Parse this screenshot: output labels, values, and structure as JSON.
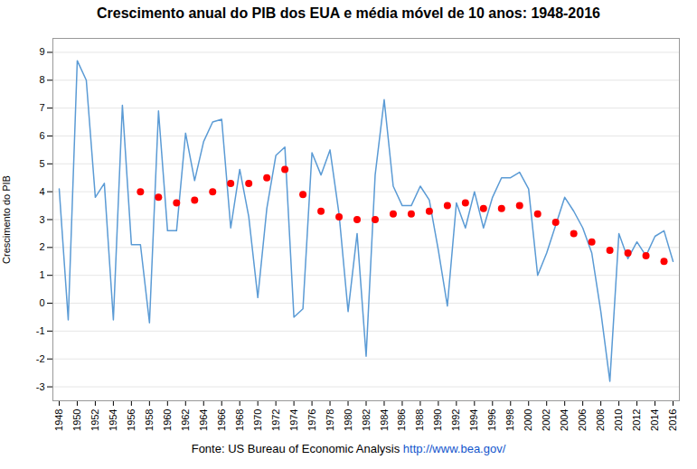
{
  "chart_data": {
    "type": "line",
    "title": "Crescimento anual do PIB dos EUA e média móvel de 10 anos: 1948-2016",
    "ylabel": "Crescimento do PIB",
    "annotations": [
      "Fonte: US Bureau of Economic Analysis",
      "http://www.bea.gov/"
    ],
    "series": [
      {
        "type": "line",
        "color": "#5b9bd5",
        "line_style": "solid",
        "x": [
          1948,
          1949,
          1950,
          1951,
          1952,
          1953,
          1954,
          1955,
          1956,
          1957,
          1958,
          1959,
          1960,
          1961,
          1962,
          1963,
          1964,
          1965,
          1966,
          1967,
          1968,
          1969,
          1970,
          1971,
          1972,
          1973,
          1974,
          1975,
          1976,
          1977,
          1978,
          1979,
          1980,
          1981,
          1982,
          1983,
          1984,
          1985,
          1986,
          1987,
          1988,
          1989,
          1990,
          1991,
          1992,
          1993,
          1994,
          1995,
          1996,
          1997,
          1998,
          1999,
          2000,
          2001,
          2002,
          2003,
          2004,
          2005,
          2006,
          2007,
          2008,
          2009,
          2010,
          2011,
          2012,
          2013,
          2014,
          2015,
          2016
        ],
        "values": [
          4.1,
          -0.6,
          8.7,
          8.0,
          3.8,
          4.3,
          -0.6,
          7.1,
          2.1,
          2.1,
          -0.7,
          6.9,
          2.6,
          2.6,
          6.1,
          4.4,
          5.8,
          6.5,
          6.6,
          2.7,
          4.8,
          3.1,
          0.2,
          3.4,
          5.3,
          5.6,
          -0.5,
          -0.2,
          5.4,
          4.6,
          5.5,
          3.2,
          -0.3,
          2.5,
          -1.9,
          4.6,
          7.3,
          4.2,
          3.5,
          3.5,
          4.2,
          3.7,
          1.9,
          -0.1,
          3.6,
          2.7,
          4.0,
          2.7,
          3.8,
          4.5,
          4.5,
          4.7,
          4.1,
          1.0,
          1.8,
          2.8,
          3.8,
          3.3,
          2.7,
          1.8,
          -0.3,
          -2.8,
          2.5,
          1.6,
          2.2,
          1.7,
          2.4,
          2.6,
          1.5
        ]
      },
      {
        "type": "scatter",
        "color": "#ff0000",
        "marker": "circle",
        "x": [
          1957,
          1959,
          1961,
          1963,
          1965,
          1967,
          1969,
          1971,
          1973,
          1975,
          1977,
          1979,
          1981,
          1983,
          1985,
          1987,
          1989,
          1991,
          1993,
          1995,
          1997,
          1999,
          2001,
          2003,
          2005,
          2007,
          2009,
          2011,
          2013,
          2015
        ],
        "values": [
          4.0,
          3.8,
          3.6,
          3.7,
          4.0,
          4.3,
          4.3,
          4.5,
          4.8,
          3.9,
          3.3,
          3.1,
          3.0,
          3.0,
          3.2,
          3.2,
          3.3,
          3.5,
          3.6,
          3.4,
          3.4,
          3.5,
          3.2,
          2.9,
          2.5,
          2.2,
          1.9,
          1.8,
          1.7,
          1.5
        ]
      }
    ],
    "xlim": [
      1947.3,
      2016.7
    ],
    "xticks": [
      1948,
      1950,
      1952,
      1954,
      1956,
      1958,
      1960,
      1962,
      1964,
      1966,
      1968,
      1970,
      1972,
      1974,
      1976,
      1978,
      1980,
      1982,
      1984,
      1986,
      1988,
      1990,
      1992,
      1994,
      1996,
      1998,
      2000,
      2002,
      2004,
      2006,
      2008,
      2010,
      2012,
      2014,
      2016
    ],
    "ylim": [
      -3.5,
      9.5
    ],
    "yticks": [
      -3,
      -2,
      -1,
      0,
      1,
      2,
      3,
      4,
      5,
      6,
      7,
      8,
      9
    ],
    "grid": "y"
  }
}
